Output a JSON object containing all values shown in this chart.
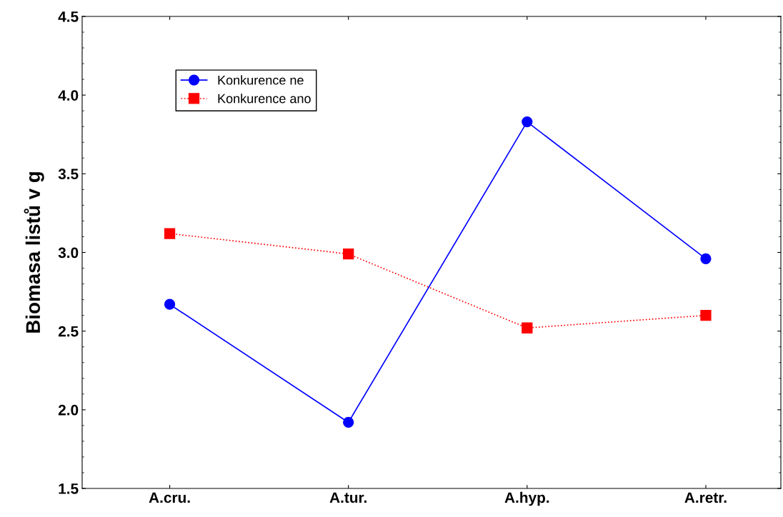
{
  "chart_data": {
    "type": "line",
    "ylabel": "Biomasa listů v g",
    "categories": [
      "A.cru.",
      "A.tur.",
      "A.hyp.",
      "A.retr."
    ],
    "series": [
      {
        "name": "Konkurence ne",
        "color": "#0000ff",
        "marker": "circle",
        "line_style": "solid",
        "values": [
          2.67,
          1.92,
          3.83,
          2.96
        ]
      },
      {
        "name": "Konkurence ano",
        "color": "#ff0000",
        "marker": "square",
        "line_style": "dotted",
        "values": [
          3.12,
          2.99,
          2.52,
          2.6
        ]
      }
    ],
    "ylim": [
      1.5,
      4.5
    ],
    "yticks": [
      {
        "value": 1.5,
        "label": "1.5"
      },
      {
        "value": 2,
        "label": "2.0"
      },
      {
        "value": 2.5,
        "label": "2.5"
      },
      {
        "value": 3,
        "label": "3.0"
      },
      {
        "value": 3.5,
        "label": "3.5"
      },
      {
        "value": 4,
        "label": "4.0"
      },
      {
        "value": 4.5,
        "label": "4.5"
      }
    ],
    "grid": false,
    "legend": "top left"
  }
}
